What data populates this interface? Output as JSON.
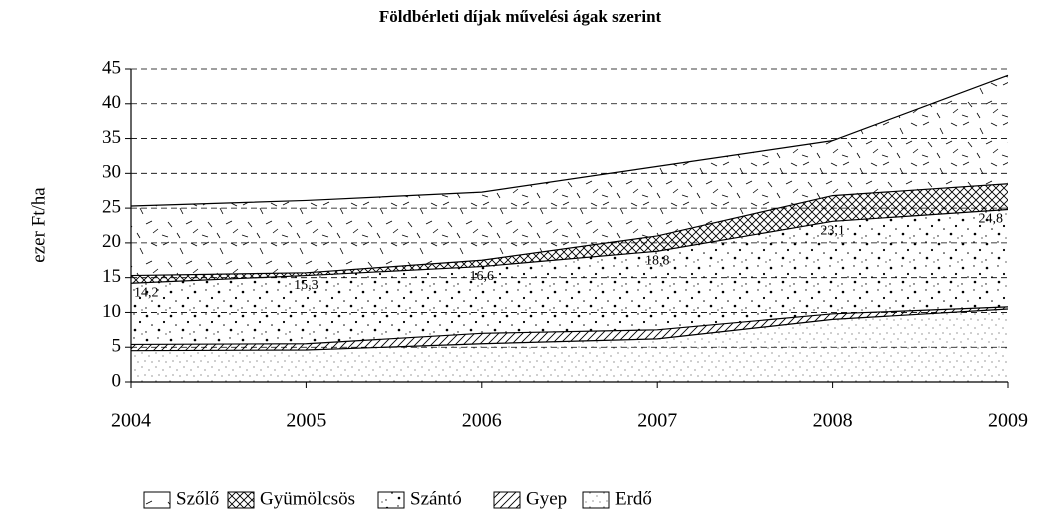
{
  "chart_data": {
    "type": "area",
    "title": "Földbérleti díjak művelési ágak szerint",
    "ylabel": "ezer Ft/ha",
    "x": [
      2004,
      2005,
      2006,
      2007,
      2008,
      2009
    ],
    "xlim": [
      2004,
      2009
    ],
    "xticks": [
      2004,
      2005,
      2006,
      2007,
      2008,
      2009
    ],
    "ylim": [
      0,
      45
    ],
    "yticks": [
      0,
      5,
      10,
      15,
      20,
      25,
      30,
      35,
      40,
      45
    ],
    "grid": true,
    "legend": "bottom",
    "series": [
      {
        "name": "Szőlő",
        "color": "#000000",
        "values": [
          25.3,
          26.1,
          27.3,
          31.0,
          34.7,
          44.1
        ]
      },
      {
        "name": "Gyümölcsös",
        "color": "#000000",
        "values": [
          15.3,
          15.7,
          17.5,
          21.0,
          26.8,
          28.5
        ]
      },
      {
        "name": "Szántó",
        "color": "#000000",
        "values": [
          14.2,
          15.3,
          16.6,
          18.8,
          23.1,
          24.8
        ],
        "value_labels": [
          "14,2",
          "15,3",
          "16,6",
          "18,8",
          "23,1",
          "24,8"
        ]
      },
      {
        "name": "Gyep",
        "color": "#000000",
        "values": [
          5.4,
          5.5,
          7.0,
          7.5,
          9.8,
          10.8
        ]
      },
      {
        "name": "Erdő",
        "color": "#000000",
        "values": [
          4.5,
          4.6,
          5.5,
          6.2,
          9.0,
          10.5
        ]
      }
    ]
  }
}
